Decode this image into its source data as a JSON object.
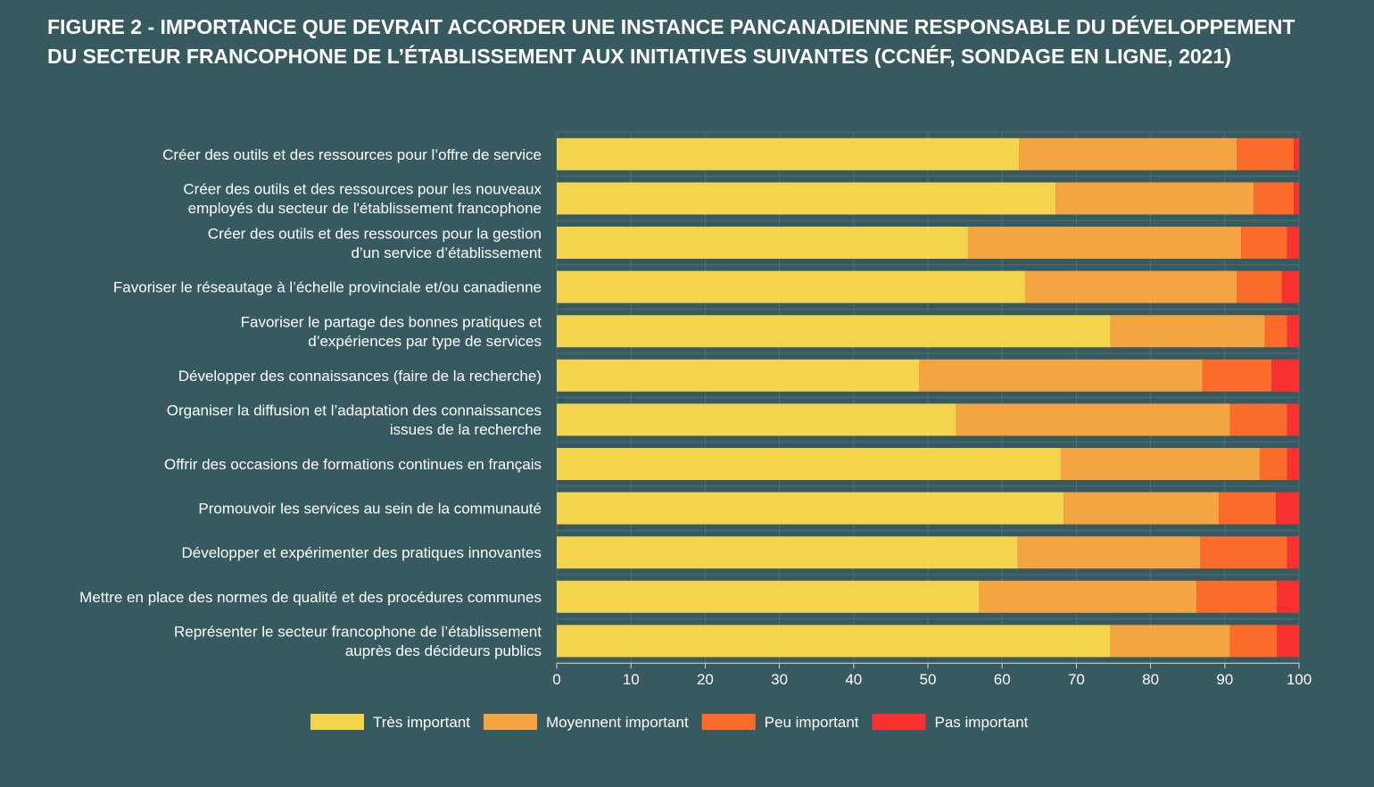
{
  "chart_data": {
    "type": "bar",
    "stacked": true,
    "orientation": "horizontal",
    "title_lines": [
      "FIGURE 2 - IMPORTANCE QUE DEVRAIT ACCORDER UNE INSTANCE PANCANADIENNE RESPONSABLE DU DÉVELOPPEMENT",
      "DU SECTEUR FRANCOPHONE DE L’ÉTABLISSEMENT AUX INITIATIVES SUIVANTES (CCNÉF, SONDAGE EN LIGNE, 2021)"
    ],
    "categories": [
      [
        "Créer des outils et des ressources pour l’offre de service"
      ],
      [
        "Créer des outils et des ressources pour les nouveaux",
        "employés du secteur de l'établissement francophone"
      ],
      [
        "Créer des outils et des ressources pour la gestion",
        "d’un service d’établissement"
      ],
      [
        "Favoriser le réseautage à l’échelle provinciale et/ou canadienne"
      ],
      [
        "Favoriser le partage des bonnes pratiques et",
        "d’expériences par type de services"
      ],
      [
        "Développer des connaissances (faire de la recherche)"
      ],
      [
        "Organiser la diffusion et l’adaptation des connaissances",
        "issues de la recherche"
      ],
      [
        "Offrir des occasions de formations continues en français"
      ],
      [
        "Promouvoir les services au sein de la communauté"
      ],
      [
        "Développer et expérimenter des pratiques innovantes"
      ],
      [
        "Mettre en place des normes de qualité et des procédures communes"
      ],
      [
        "Représenter le secteur francophone de l’établissement",
        "auprès des décideurs publics"
      ]
    ],
    "series": [
      {
        "name": "Très important",
        "color": "#f4d44d",
        "values": [
          62.3,
          67.2,
          55.4,
          63.1,
          74.6,
          48.8,
          53.8,
          67.9,
          68.3,
          62.1,
          56.9,
          74.6
        ]
      },
      {
        "name": "Moyennent important",
        "color": "#f5a442",
        "values": [
          29.3,
          26.7,
          36.8,
          28.5,
          20.8,
          38.2,
          36.9,
          26.8,
          20.9,
          24.6,
          29.3,
          16.1
        ]
      },
      {
        "name": "Peu important",
        "color": "#fb6b2a",
        "values": [
          7.7,
          5.4,
          6.2,
          6.1,
          3.0,
          9.3,
          7.7,
          3.7,
          7.7,
          11.7,
          10.8,
          6.3
        ]
      },
      {
        "name": "Pas important",
        "color": "#f8302f",
        "values": [
          0.7,
          0.7,
          1.6,
          2.3,
          1.6,
          3.7,
          1.6,
          1.6,
          3.1,
          1.6,
          3.0,
          3.0
        ]
      }
    ],
    "xlim": [
      0,
      100
    ],
    "xticks": [
      "0",
      "10",
      "20",
      "30",
      "40",
      "50",
      "60",
      "70",
      "80",
      "90",
      "100"
    ],
    "xlabel": "",
    "ylabel": "",
    "grid": true,
    "legend_position": "bottom"
  }
}
